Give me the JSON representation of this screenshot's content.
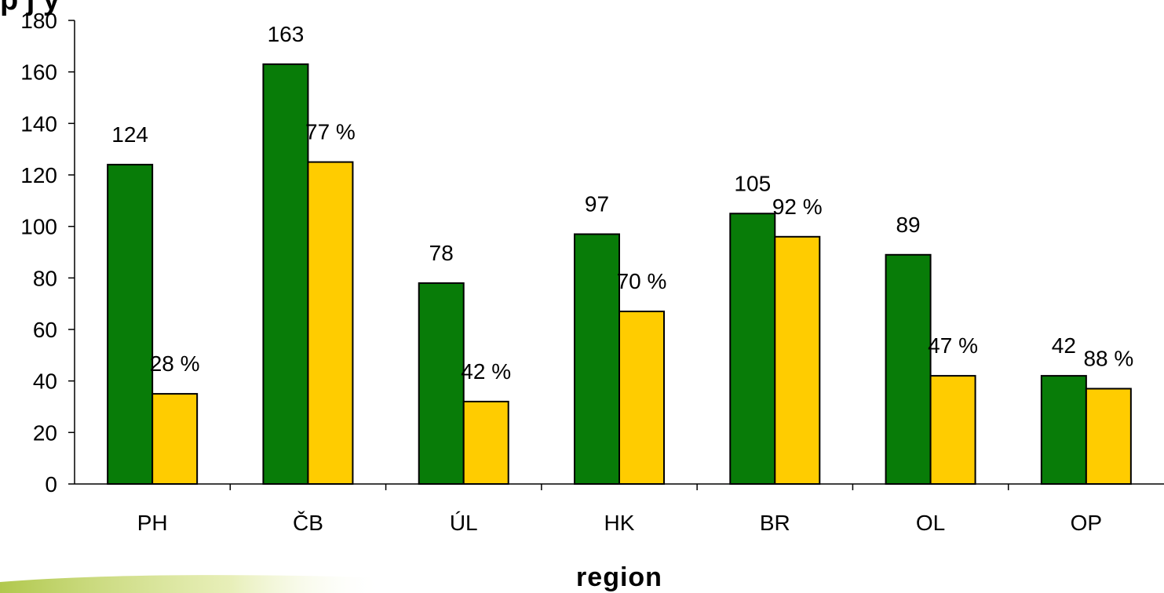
{
  "chart_data": {
    "type": "bar",
    "title_fragment": "p  j  y",
    "xlabel": "region",
    "ylabel": "",
    "ylim": [
      0,
      180
    ],
    "yticks": [
      0,
      20,
      40,
      60,
      80,
      100,
      120,
      140,
      160,
      180
    ],
    "categories": [
      "PH",
      "ČB",
      "ÚL",
      "HK",
      "BR",
      "OL",
      "OP"
    ],
    "grid": false,
    "series": [
      {
        "color": "#087c08",
        "values": [
          124,
          163,
          78,
          97,
          105,
          89,
          42
        ],
        "labels": [
          "124",
          "163",
          "78",
          "97",
          "105",
          "89",
          "42"
        ]
      },
      {
        "color": "#ffcc00",
        "values": [
          35,
          125,
          32,
          67,
          96,
          42,
          37
        ],
        "labels": [
          "28 %",
          "77 %",
          "42 %",
          "70 %",
          "92 %",
          "47 %",
          "88 %"
        ]
      }
    ]
  },
  "decoration": {
    "swoosh_color": "#c8d86a"
  }
}
